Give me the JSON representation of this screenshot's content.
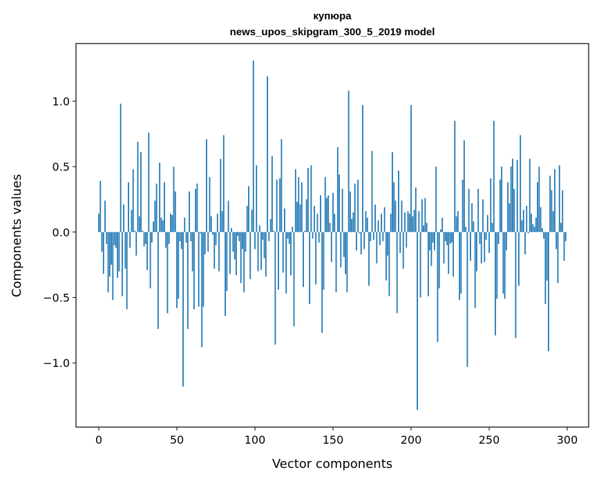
{
  "chart_data": {
    "type": "bar",
    "title": "купюра",
    "subtitle": "news_upos_skipgram_300_5_2019 model",
    "xlabel": "Vector components",
    "ylabel": "Components values",
    "xlim": [
      -14.6,
      313.7
    ],
    "ylim": [
      -1.49,
      1.44
    ],
    "grid": false,
    "bar_color": "#1f77b4",
    "xticks": [
      {
        "value": 0,
        "label": "0"
      },
      {
        "value": 50,
        "label": "50"
      },
      {
        "value": 100,
        "label": "100"
      },
      {
        "value": 150,
        "label": "150"
      },
      {
        "value": 200,
        "label": "200"
      },
      {
        "value": 250,
        "label": "250"
      },
      {
        "value": 300,
        "label": "300"
      }
    ],
    "yticks": [
      {
        "value": -1.0,
        "label": "−1.0"
      },
      {
        "value": -0.5,
        "label": "−0.5"
      },
      {
        "value": 0.0,
        "label": "0.0"
      },
      {
        "value": 0.5,
        "label": "0.5"
      },
      {
        "value": 1.0,
        "label": "1.0"
      }
    ],
    "values": [
      0.14,
      0.39,
      -0.15,
      -0.32,
      0.24,
      -0.09,
      -0.46,
      -0.34,
      -0.25,
      -0.52,
      -0.1,
      -0.12,
      -0.35,
      -0.3,
      0.98,
      -0.49,
      0.21,
      -0.28,
      -0.59,
      0.38,
      -0.12,
      0.17,
      0.48,
      0.01,
      -0.18,
      0.69,
      0.12,
      0.61,
      0.01,
      -0.11,
      -0.09,
      -0.29,
      0.76,
      -0.43,
      -0.08,
      0.08,
      0.24,
      0.37,
      -0.74,
      0.53,
      0.11,
      0.09,
      0.38,
      -0.12,
      -0.62,
      -0.09,
      0.14,
      0.13,
      0.5,
      0.31,
      -0.58,
      -0.51,
      -0.07,
      -0.13,
      -1.18,
      0.11,
      -0.08,
      -0.74,
      0.31,
      -0.07,
      -0.3,
      -0.59,
      0.33,
      0.37,
      -0.57,
      -0.01,
      -0.88,
      -0.57,
      -0.17,
      0.71,
      -0.15,
      0.42,
      0.12,
      -0.02,
      -0.28,
      -0.1,
      0.14,
      -0.3,
      0.56,
      0.16,
      0.74,
      -0.64,
      -0.45,
      0.24,
      -0.32,
      0.03,
      -0.15,
      -0.21,
      -0.33,
      -0.03,
      -0.07,
      -0.39,
      -0.13,
      -0.46,
      -0.15,
      0.2,
      0.35,
      -0.36,
      0.17,
      1.31,
      -0.13,
      0.51,
      -0.3,
      0.05,
      -0.29,
      -0.06,
      -0.2,
      -0.34,
      1.19,
      -0.07,
      0.1,
      0.58,
      0.01,
      -0.86,
      0.4,
      -0.44,
      0.41,
      0.71,
      -0.31,
      0.18,
      -0.47,
      -0.05,
      -0.09,
      -0.33,
      0.04,
      -0.72,
      0.48,
      0.23,
      0.42,
      0.21,
      0.38,
      -0.42,
      0.01,
      0.25,
      0.49,
      -0.55,
      0.51,
      -0.05,
      0.2,
      -0.4,
      0.14,
      -0.08,
      0.28,
      -0.77,
      -0.44,
      0.42,
      0.26,
      0.28,
      0.07,
      -0.23,
      0.3,
      0.14,
      -0.46,
      0.65,
      0.44,
      -0.27,
      0.33,
      -0.19,
      -0.32,
      -0.46,
      1.08,
      0.31,
      0.1,
      0.15,
      0.37,
      -0.14,
      0.4,
      -0.01,
      -0.17,
      0.97,
      -0.13,
      0.16,
      0.11,
      -0.41,
      -0.07,
      0.62,
      -0.06,
      0.21,
      -0.24,
      0.09,
      -0.1,
      0.14,
      -0.07,
      0.19,
      -0.37,
      -0.18,
      -0.49,
      0.14,
      0.61,
      0.38,
      0.24,
      -0.62,
      0.47,
      -0.16,
      0.24,
      -0.28,
      0.15,
      -0.12,
      0.16,
      0.14,
      0.97,
      0.12,
      0.17,
      0.34,
      -1.36,
      0.16,
      -0.5,
      0.25,
      0.05,
      0.26,
      0.07,
      -0.49,
      -0.14,
      -0.26,
      -0.08,
      -0.14,
      0.5,
      -0.84,
      -0.43,
      0.02,
      0.11,
      -0.24,
      -0.07,
      -0.1,
      -0.32,
      -0.09,
      -0.08,
      -0.34,
      0.85,
      0.12,
      0.16,
      -0.52,
      -0.47,
      0.4,
      0.7,
      0.04,
      -1.03,
      0.33,
      -0.22,
      0.22,
      0.08,
      -0.58,
      -0.3,
      0.33,
      -0.09,
      -0.24,
      0.25,
      -0.23,
      -0.06,
      0.13,
      -0.16,
      0.41,
      0.07,
      0.85,
      -0.79,
      -0.51,
      -0.09,
      0.4,
      0.5,
      -0.47,
      -0.51,
      -0.14,
      0.38,
      0.22,
      0.5,
      0.56,
      0.33,
      -0.81,
      0.55,
      -0.41,
      0.74,
      0.09,
      0.17,
      -0.17,
      0.2,
      -0.01,
      0.56,
      0.14,
      0.06,
      0.04,
      0.11,
      0.38,
      0.5,
      0.19,
      0.03,
      -0.05,
      -0.55,
      -0.37,
      -0.91,
      0.43,
      0.32,
      0.16,
      0.48,
      -0.13,
      -0.39,
      0.51,
      0.07,
      0.32,
      -0.22,
      -0.07
    ]
  }
}
